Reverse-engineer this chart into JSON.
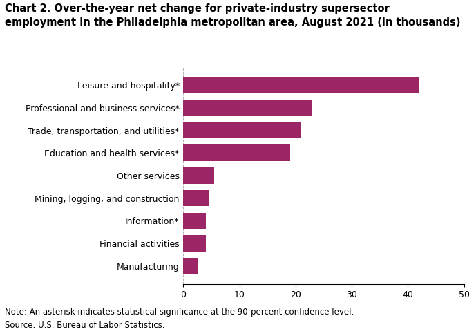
{
  "title": "Chart 2. Over-the-year net change for private-industry supersector\nemployment in the Philadelphia metropolitan area, August 2021 (in thousands)",
  "categories": [
    "Manufacturing",
    "Financial activities",
    "Information*",
    "Mining, logging, and construction",
    "Other services",
    "Education and health services*",
    "Trade, transportation, and utilities*",
    "Professional and business services*",
    "Leisure and hospitality*"
  ],
  "values": [
    2.5,
    4.0,
    4.0,
    4.5,
    5.5,
    19.0,
    21.0,
    23.0,
    42.0
  ],
  "bar_color": "#9b2565",
  "xlim": [
    0,
    50
  ],
  "xticks": [
    0,
    10,
    20,
    30,
    40,
    50
  ],
  "grid_color": "#b0b0b0",
  "note": "Note: An asterisk indicates statistical significance at the 90-percent confidence level.",
  "source": "Source: U.S. Bureau of Labor Statistics.",
  "background_color": "#ffffff",
  "bar_height": 0.72,
  "title_fontsize": 10.5,
  "tick_fontsize": 9,
  "note_fontsize": 8.5
}
